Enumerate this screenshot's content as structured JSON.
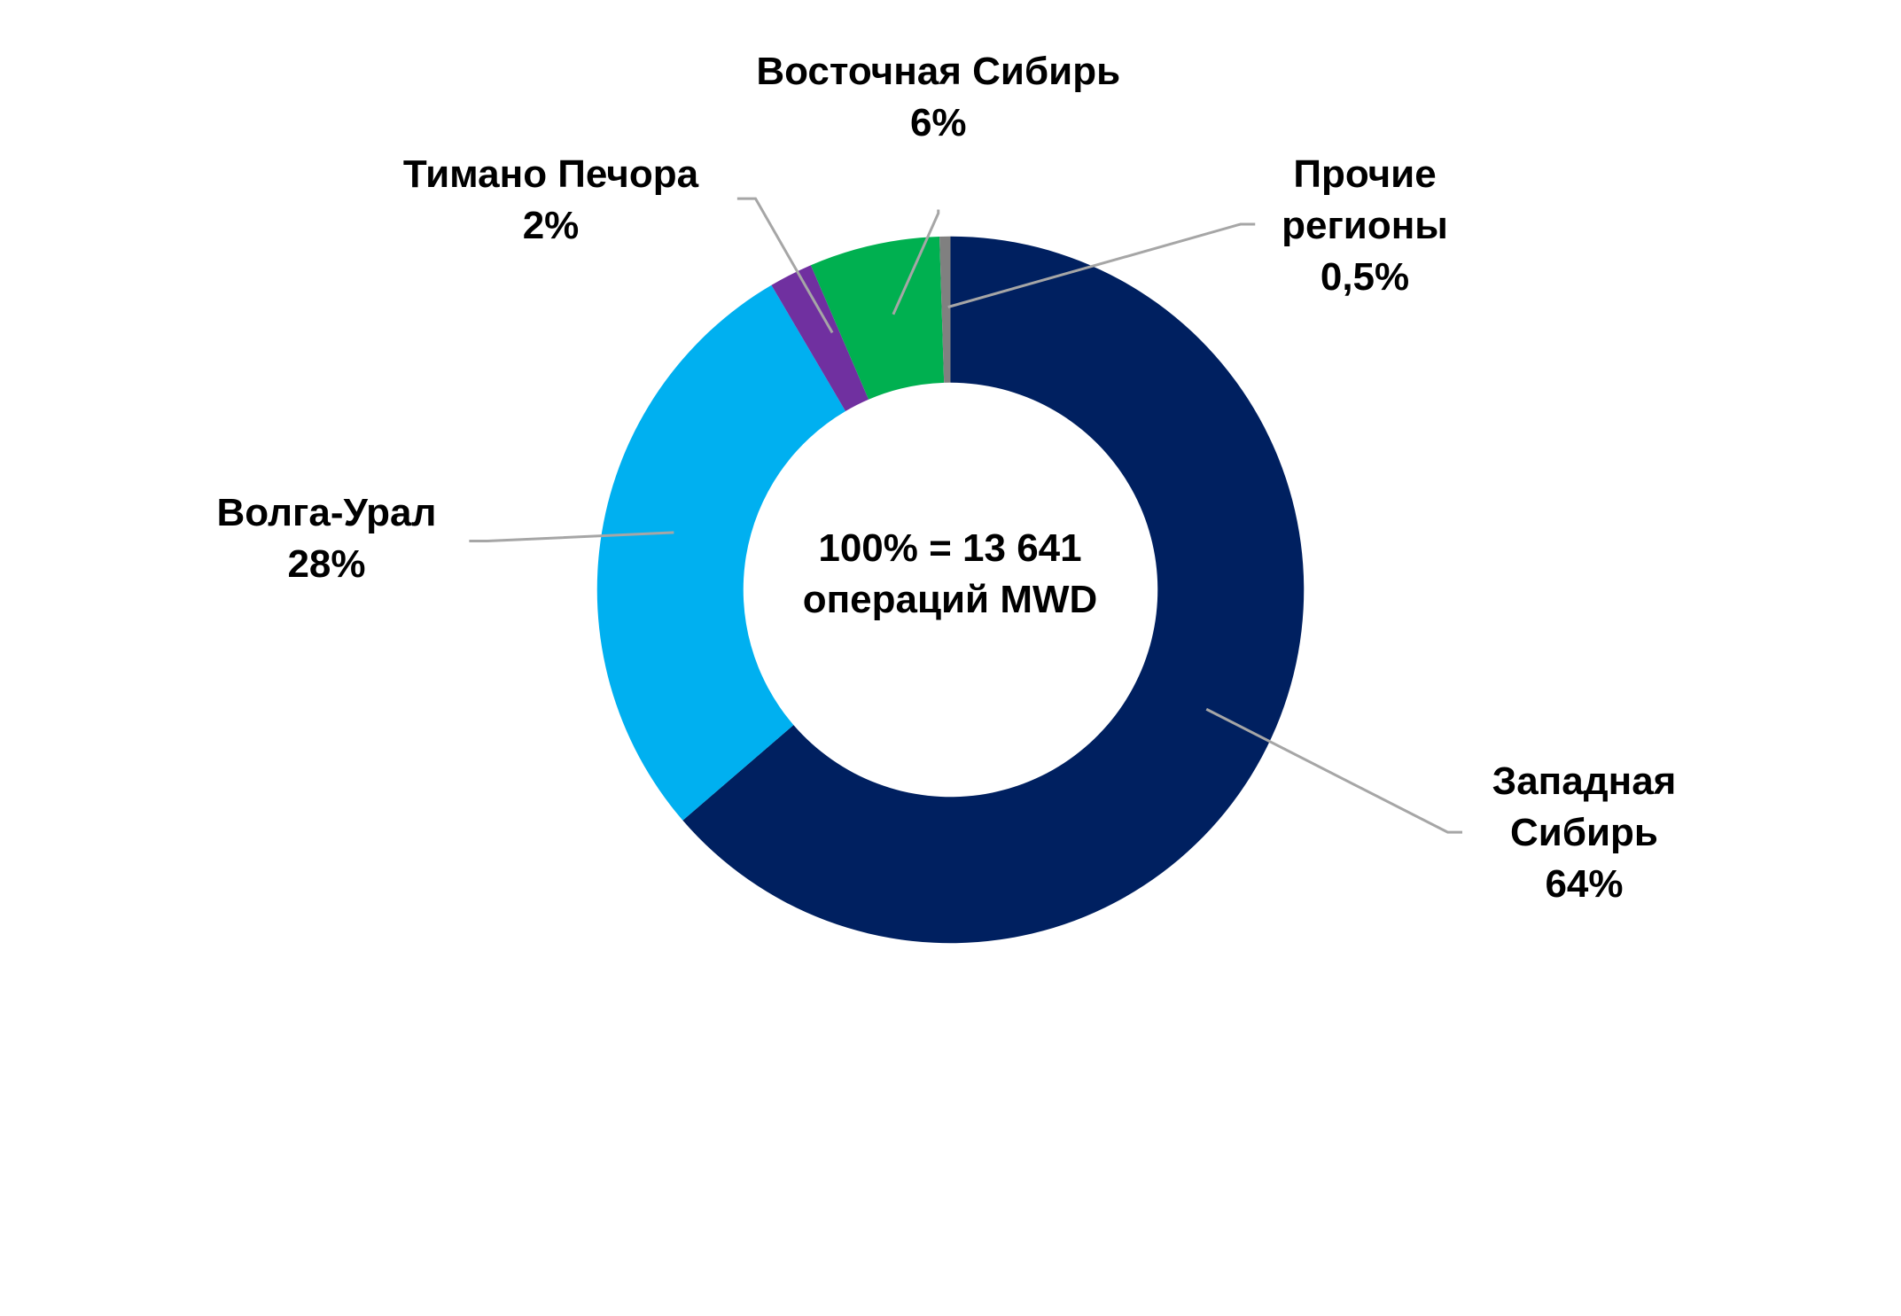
{
  "chart_data": {
    "type": "pie",
    "annotation": "100% = 13 641 операций MWD",
    "categories": [
      "Западная Сибирь",
      "Волга-Урал",
      "Тимано Печора",
      "Восточная Сибирь",
      "Прочие регионы"
    ],
    "values": [
      64,
      28,
      2,
      6,
      0.5
    ],
    "value_labels": [
      "64%",
      "28%",
      "2%",
      "6%",
      "0,5%"
    ],
    "colors": [
      "#002060",
      "#00b0f0",
      "#7030a0",
      "#00b050",
      "#808080"
    ]
  }
}
